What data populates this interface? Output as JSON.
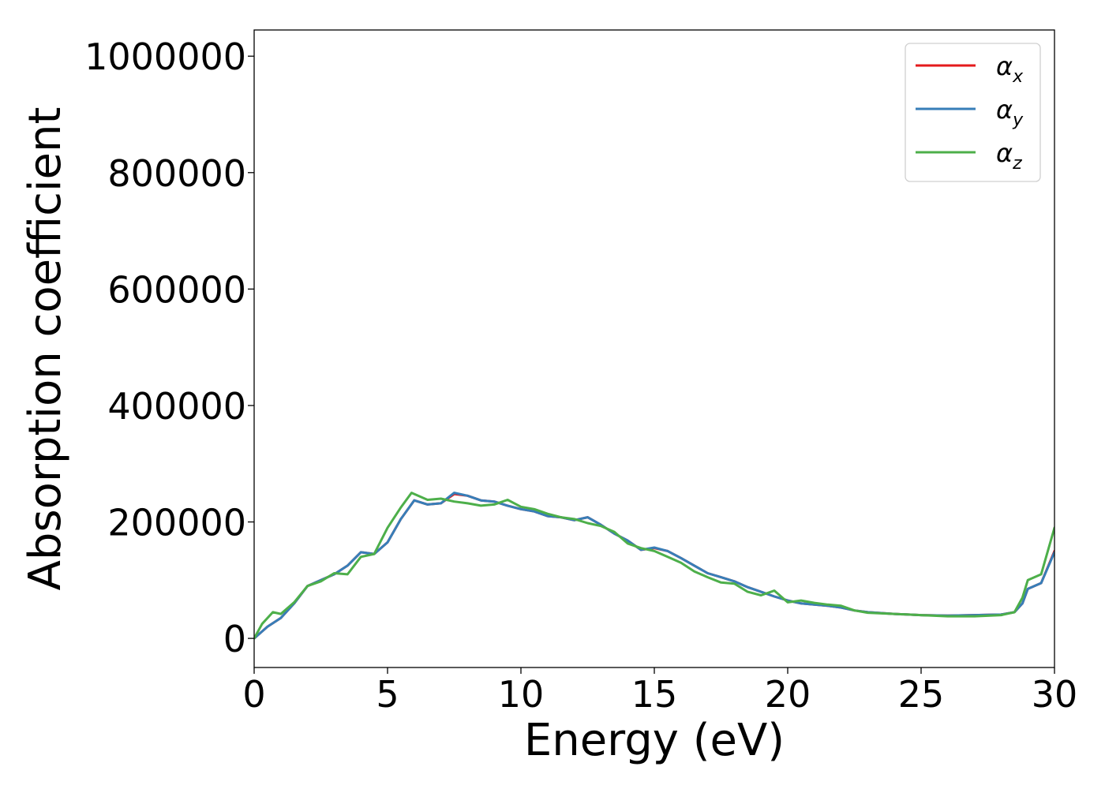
{
  "chart_data": {
    "type": "line",
    "title": "",
    "xlabel": "Energy (eV)",
    "ylabel": "Absorption coefficient",
    "xlim": [
      0,
      30
    ],
    "ylim": [
      -50000,
      1045000
    ],
    "xticks": [
      0,
      5,
      10,
      15,
      20,
      25,
      30
    ],
    "xtick_labels": [
      "0",
      "5",
      "10",
      "15",
      "20",
      "25",
      "30"
    ],
    "yticks": [
      0,
      200000,
      400000,
      600000,
      800000,
      1000000
    ],
    "ytick_labels": [
      "0",
      "200000",
      "400000",
      "600000",
      "800000",
      "1000000"
    ],
    "grid": false,
    "legend_position": "top-right",
    "series": [
      {
        "name": "αx",
        "legend_base": "α",
        "legend_sub": "x",
        "color": "#e41a1c",
        "x": [
          0,
          0.5,
          1,
          1.5,
          2,
          2.5,
          3,
          3.5,
          4,
          4.5,
          5,
          5.5,
          6,
          6.5,
          7,
          7.5,
          8,
          8.5,
          9,
          9.5,
          10,
          10.5,
          11,
          11.5,
          12,
          12.5,
          13,
          13.5,
          14,
          14.5,
          15,
          15.5,
          16,
          16.5,
          17,
          17.5,
          18,
          18.5,
          19,
          19.5,
          20,
          20.5,
          21,
          21.5,
          22,
          22.5,
          23,
          24,
          25,
          26,
          27,
          28,
          28.5,
          28.8,
          29,
          29.5,
          30
        ],
        "y": [
          0,
          20000,
          35000,
          60000,
          90000,
          100000,
          110000,
          125000,
          148000,
          145000,
          165000,
          205000,
          237000,
          230000,
          232000,
          248000,
          245000,
          237000,
          235000,
          228000,
          222000,
          218000,
          210000,
          208000,
          203000,
          208000,
          195000,
          180000,
          168000,
          152000,
          155000,
          150000,
          138000,
          125000,
          112000,
          105000,
          98000,
          88000,
          80000,
          72000,
          65000,
          60000,
          58000,
          56000,
          53000,
          48000,
          45000,
          42000,
          40000,
          39000,
          40000,
          41000,
          45000,
          60000,
          85000,
          95000,
          150000
        ]
      },
      {
        "name": "αy",
        "legend_base": "α",
        "legend_sub": "y",
        "color": "#377eb8",
        "x": [
          0,
          0.5,
          1,
          1.5,
          2,
          2.5,
          3,
          3.5,
          4,
          4.5,
          5,
          5.5,
          6,
          6.5,
          7,
          7.5,
          8,
          8.5,
          9,
          9.5,
          10,
          10.5,
          11,
          11.5,
          12,
          12.5,
          13,
          13.5,
          14,
          14.5,
          15,
          15.5,
          16,
          16.5,
          17,
          17.5,
          18,
          18.5,
          19,
          19.5,
          20,
          20.5,
          21,
          21.5,
          22,
          22.5,
          23,
          24,
          25,
          26,
          27,
          28,
          28.5,
          28.8,
          29,
          29.5,
          30
        ],
        "y": [
          0,
          20000,
          35000,
          60000,
          90000,
          100000,
          110000,
          125000,
          148000,
          145000,
          165000,
          205000,
          237000,
          230000,
          232000,
          250000,
          245000,
          237000,
          235000,
          228000,
          222000,
          218000,
          210000,
          208000,
          203000,
          208000,
          195000,
          180000,
          168000,
          152000,
          156000,
          150000,
          138000,
          125000,
          112000,
          105000,
          98000,
          88000,
          80000,
          72000,
          65000,
          60000,
          58000,
          56000,
          53000,
          48000,
          45000,
          42000,
          40000,
          39000,
          40000,
          41000,
          45000,
          60000,
          85000,
          95000,
          148000
        ]
      },
      {
        "name": "αz",
        "legend_base": "α",
        "legend_sub": "z",
        "color": "#4daf4a",
        "x": [
          0,
          0.3,
          0.7,
          1,
          1.5,
          2,
          2.5,
          3,
          3.5,
          4,
          4.5,
          5,
          5.5,
          5.9,
          6.5,
          7,
          7.5,
          8,
          8.5,
          9,
          9.5,
          10,
          10.5,
          11,
          11.5,
          12,
          12.5,
          13,
          13.5,
          14,
          14.5,
          15,
          15.5,
          16,
          16.5,
          17,
          17.5,
          18,
          18.5,
          19,
          19.5,
          20,
          20.5,
          21,
          21.5,
          22,
          22.5,
          23,
          24,
          25,
          26,
          27,
          28,
          28.5,
          28.8,
          29,
          29.5,
          30
        ],
        "y": [
          0,
          25000,
          45000,
          42000,
          62000,
          90000,
          98000,
          112000,
          110000,
          140000,
          145000,
          190000,
          225000,
          250000,
          238000,
          240000,
          235000,
          232000,
          228000,
          230000,
          238000,
          226000,
          222000,
          214000,
          208000,
          205000,
          198000,
          193000,
          183000,
          163000,
          155000,
          150000,
          140000,
          130000,
          115000,
          105000,
          96000,
          94000,
          80000,
          74000,
          82000,
          62000,
          65000,
          61000,
          58000,
          56000,
          48000,
          44000,
          42000,
          40000,
          38000,
          38000,
          40000,
          45000,
          70000,
          100000,
          110000,
          190000
        ]
      }
    ]
  }
}
